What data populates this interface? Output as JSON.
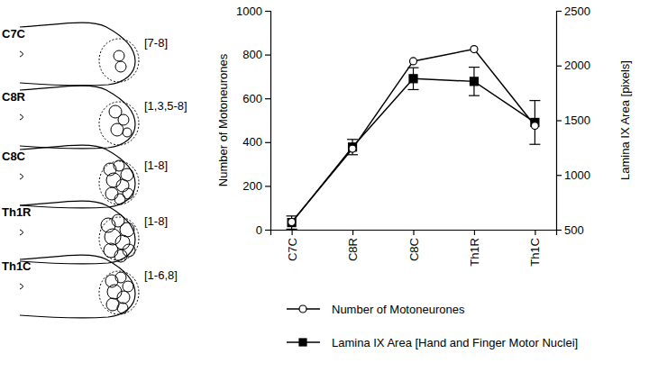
{
  "chart_data": {
    "type": "line",
    "categories": [
      "C7C",
      "C8R",
      "C8C",
      "Th1R",
      "Th1C"
    ],
    "ylabel": "Number of Motoneurones",
    "y2label": "Lamina IX Area [pixels]",
    "ylim": [
      0,
      1000
    ],
    "yticks": [
      0,
      200,
      400,
      600,
      800,
      1000
    ],
    "y2lim": [
      500,
      2500
    ],
    "y2ticks": [
      500,
      1000,
      1500,
      2000,
      2500
    ],
    "series": [
      {
        "name": "Number of Motoneurones",
        "color": "#000000",
        "marker": "open-circle",
        "line_style": "solid",
        "values": [
          35,
          370,
          770,
          825,
          475
        ]
      },
      {
        "name": "Lamina IX Area [Hand and Finger Motor Nuclei]",
        "color": "#000000",
        "marker": "square",
        "line_style": "solid",
        "axis": "y2",
        "values": [
          565,
          1255,
          1880,
          1855,
          1480
        ],
        "errors": [
          60,
          70,
          100,
          130,
          200
        ]
      }
    ]
  },
  "sections": [
    {
      "label": "C7C",
      "nuclei": "[7-8]"
    },
    {
      "label": "C8R",
      "nuclei": "[1,3,5-8]"
    },
    {
      "label": "C8C",
      "nuclei": "[1-8]"
    },
    {
      "label": "Th1R",
      "nuclei": "[1-8]"
    },
    {
      "label": "Th1C",
      "nuclei": "[1-6,8]"
    }
  ]
}
